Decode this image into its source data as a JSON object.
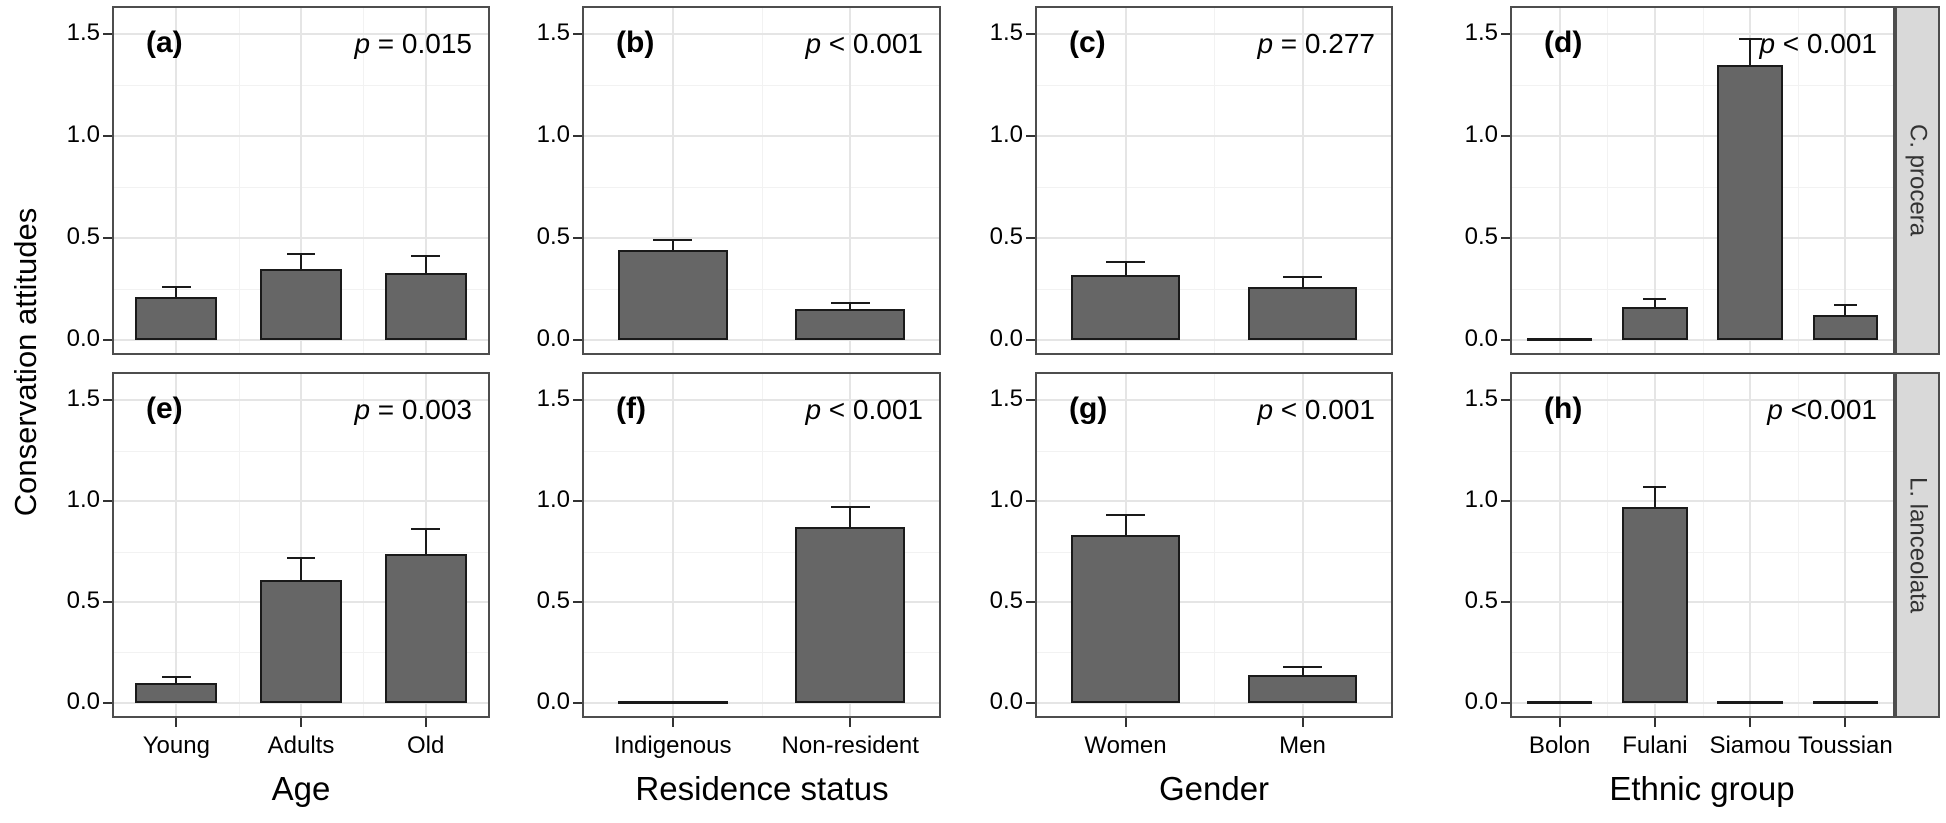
{
  "figure": {
    "ylabel": "Conservation attitudes",
    "y_tick_labels": [
      "1.5",
      "1.0",
      "0.5",
      "0.0"
    ]
  },
  "chart_data": {
    "type": "bar",
    "title": "",
    "xlabel_columns": [
      "Age",
      "Residence status",
      "Gender",
      "Ethnic group"
    ],
    "ylabel": "Conservation attitudes",
    "ylim": [
      0,
      1.5
    ],
    "y_ticks": [
      1.5,
      1.0,
      0.5,
      0.0
    ],
    "grid": "on",
    "legend": "none",
    "facet_rows": [
      "C. procera",
      "L. lanceolata"
    ],
    "facet_cols": [
      "Age",
      "Residence status",
      "Gender",
      "Ethnic group"
    ],
    "bar_color": "#666666",
    "bar_border_color": "#1a1a1a",
    "strip_bg_color": "#d9d9d9",
    "panel_border_color": "#4d4d4d",
    "panels": [
      {
        "letter": "(a)",
        "p_value": "p = 0.015",
        "row": 0,
        "col": 0,
        "categories": [
          "Young",
          "Adults",
          "Old"
        ],
        "values": [
          0.21,
          0.35,
          0.33
        ],
        "errors_upper": [
          0.26,
          0.42,
          0.41
        ]
      },
      {
        "letter": "(b)",
        "p_value": "p < 0.001",
        "row": 0,
        "col": 1,
        "categories": [
          "Indigenous",
          "Non-resident"
        ],
        "values": [
          0.44,
          0.15
        ],
        "errors_upper": [
          0.49,
          0.18
        ]
      },
      {
        "letter": "(c)",
        "p_value": "p = 0.277",
        "row": 0,
        "col": 2,
        "categories": [
          "Women",
          "Men"
        ],
        "values": [
          0.32,
          0.26
        ],
        "errors_upper": [
          0.38,
          0.31
        ]
      },
      {
        "letter": "(d)",
        "p_value": "p < 0.001",
        "row": 0,
        "col": 3,
        "categories": [
          "Bolon",
          "Fulani",
          "Siamou",
          "Toussian"
        ],
        "values": [
          0.0,
          0.16,
          1.35,
          0.12
        ],
        "errors_upper": [
          0.0,
          0.2,
          1.48,
          0.17
        ]
      },
      {
        "letter": "(e)",
        "p_value": "p = 0.003",
        "row": 1,
        "col": 0,
        "categories": [
          "Young",
          "Adults",
          "Old"
        ],
        "values": [
          0.1,
          0.61,
          0.74
        ],
        "errors_upper": [
          0.13,
          0.72,
          0.86
        ]
      },
      {
        "letter": "(f)",
        "p_value": "p < 0.001",
        "row": 1,
        "col": 1,
        "categories": [
          "Indigenous",
          "Non-resident"
        ],
        "values": [
          0.0,
          0.87
        ],
        "errors_upper": [
          0.0,
          0.97
        ]
      },
      {
        "letter": "(g)",
        "p_value": "p < 0.001",
        "row": 1,
        "col": 2,
        "categories": [
          "Women",
          "Men"
        ],
        "values": [
          0.83,
          0.14
        ],
        "errors_upper": [
          0.93,
          0.18
        ]
      },
      {
        "letter": "(h)",
        "p_value": "p <0.001",
        "row": 1,
        "col": 3,
        "categories": [
          "Bolon",
          "Fulani",
          "Siamou",
          "Toussian"
        ],
        "values": [
          0.0,
          0.97,
          0.0,
          0.0
        ],
        "errors_upper": [
          0.0,
          1.07,
          0.0,
          0.0
        ]
      }
    ]
  }
}
